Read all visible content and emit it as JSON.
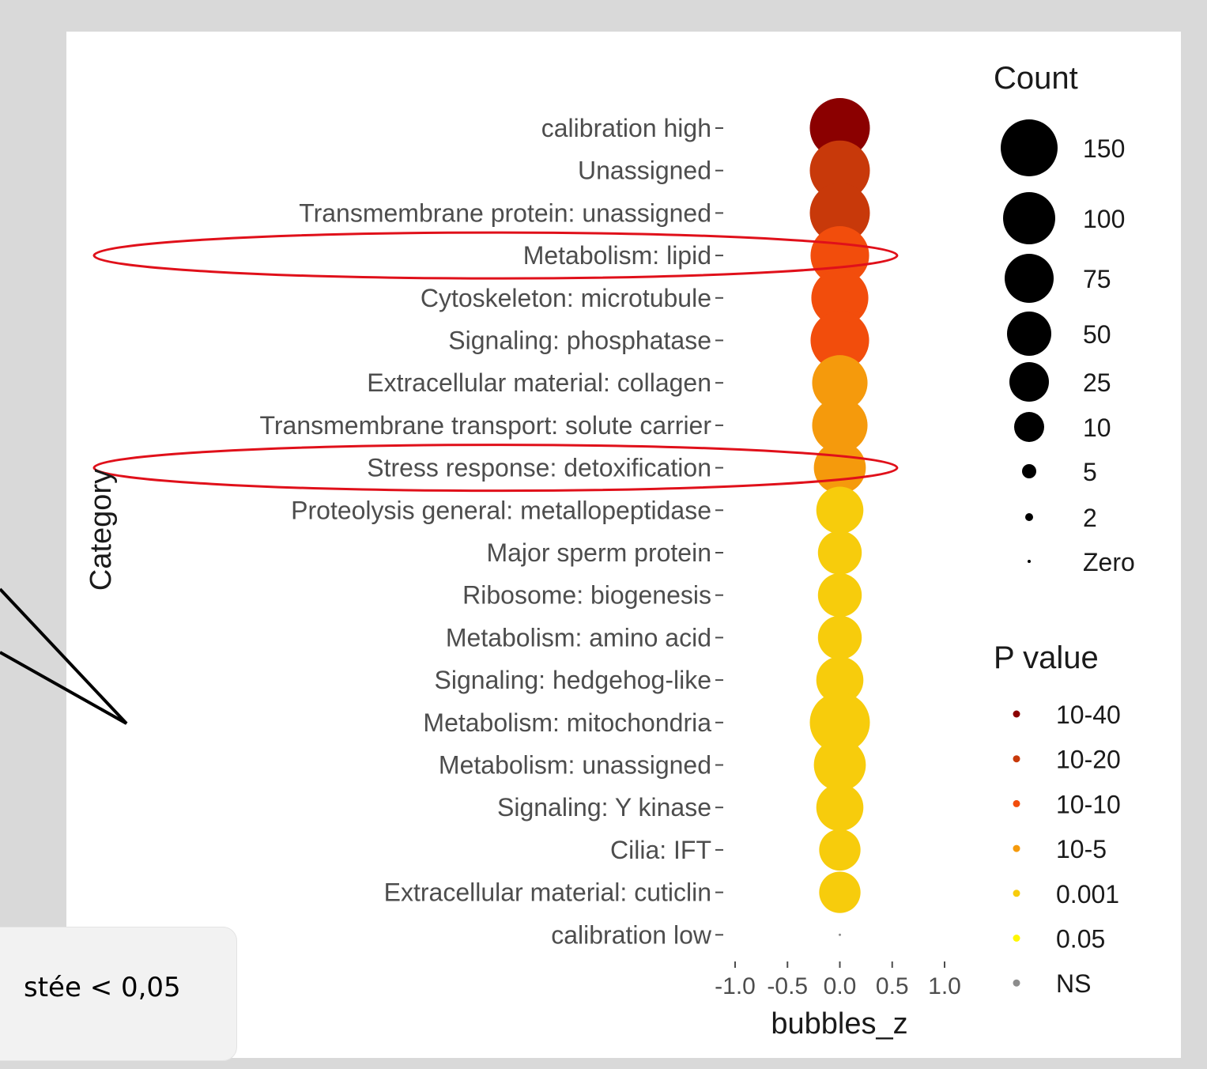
{
  "chart_data": {
    "type": "scatter",
    "xlabel": "bubbles_z",
    "ylabel": "Category",
    "xlim": [
      -1.0,
      1.0
    ],
    "x_ticks": [
      "-1.0",
      "-0.5",
      "0.0",
      "0.5",
      "1.0"
    ],
    "categories": [
      "calibration high",
      "Unassigned",
      "Transmembrane protein: unassigned",
      "Metabolism: lipid",
      "Cytoskeleton: microtubule",
      "Signaling: phosphatase",
      "Extracellular material: collagen",
      "Transmembrane transport: solute carrier",
      "Stress response: detoxification",
      "Proteolysis general: metallopeptidase",
      "Major sperm protein",
      "Ribosome: biogenesis",
      "Metabolism: amino acid",
      "Signaling: hedgehog-like",
      "Metabolism: mitochondria",
      "Metabolism: unassigned",
      "Signaling: Y kinase",
      "Cilia: IFT",
      "Extracellular material: cuticlin",
      "calibration low"
    ],
    "points": [
      {
        "category": "calibration high",
        "x": 0.0,
        "count": 150,
        "p_level": "10-40"
      },
      {
        "category": "Unassigned",
        "x": 0.0,
        "count": 150,
        "p_level": "10-20"
      },
      {
        "category": "Transmembrane protein: unassigned",
        "x": 0.0,
        "count": 150,
        "p_level": "10-20"
      },
      {
        "category": "Metabolism: lipid",
        "x": 0.0,
        "count": 140,
        "p_level": "10-10"
      },
      {
        "category": "Cytoskeleton: microtubule",
        "x": 0.0,
        "count": 130,
        "p_level": "10-10"
      },
      {
        "category": "Signaling: phosphatase",
        "x": 0.0,
        "count": 140,
        "p_level": "10-10"
      },
      {
        "category": "Extracellular material: collagen",
        "x": 0.0,
        "count": 120,
        "p_level": "10-5"
      },
      {
        "category": "Transmembrane transport: solute carrier",
        "x": 0.0,
        "count": 120,
        "p_level": "10-5"
      },
      {
        "category": "Stress response: detoxification",
        "x": 0.0,
        "count": 100,
        "p_level": "10-5"
      },
      {
        "category": "Proteolysis general: metallopeptidase",
        "x": 0.0,
        "count": 75,
        "p_level": "0.001"
      },
      {
        "category": "Major sperm protein",
        "x": 0.0,
        "count": 60,
        "p_level": "0.001"
      },
      {
        "category": "Ribosome: biogenesis",
        "x": 0.0,
        "count": 60,
        "p_level": "0.001"
      },
      {
        "category": "Metabolism: amino acid",
        "x": 0.0,
        "count": 60,
        "p_level": "0.001"
      },
      {
        "category": "Signaling: hedgehog-like",
        "x": 0.0,
        "count": 75,
        "p_level": "0.001"
      },
      {
        "category": "Metabolism: mitochondria",
        "x": 0.0,
        "count": 150,
        "p_level": "0.001"
      },
      {
        "category": "Metabolism: unassigned",
        "x": 0.0,
        "count": 100,
        "p_level": "0.001"
      },
      {
        "category": "Signaling: Y kinase",
        "x": 0.0,
        "count": 75,
        "p_level": "0.001"
      },
      {
        "category": "Cilia: IFT",
        "x": 0.0,
        "count": 50,
        "p_level": "0.001"
      },
      {
        "category": "Extracellular material: cuticlin",
        "x": 0.0,
        "count": 50,
        "p_level": "0.001"
      },
      {
        "category": "calibration low",
        "x": 0.0,
        "count": 0,
        "p_level": "NS"
      }
    ],
    "legend_count": {
      "title": "Count",
      "entries": [
        {
          "label": "150",
          "value": 150
        },
        {
          "label": "100",
          "value": 100
        },
        {
          "label": "75",
          "value": 75
        },
        {
          "label": "50",
          "value": 50
        },
        {
          "label": "25",
          "value": 25
        },
        {
          "label": "10",
          "value": 10
        },
        {
          "label": "5",
          "value": 5
        },
        {
          "label": "2",
          "value": 2
        },
        {
          "label": "Zero",
          "value": 0
        }
      ]
    },
    "legend_p": {
      "title": "P value",
      "entries": [
        {
          "label": "10-40",
          "color": "#8b0000"
        },
        {
          "label": "10-20",
          "color": "#c8390a"
        },
        {
          "label": "10-10",
          "color": "#f24d0c"
        },
        {
          "label": "10-5",
          "color": "#f59a0c"
        },
        {
          "label": "0.001",
          "color": "#f7cc0c"
        },
        {
          "label": "0.05",
          "color": "#fff700"
        },
        {
          "label": "NS",
          "color": "#8c8c8c"
        }
      ]
    },
    "highlighted_categories": [
      "Metabolism: lipid",
      "Stress response: detoxification"
    ],
    "highlight_color": "#e0101a",
    "legend_position": "right",
    "grid": false
  },
  "callout": {
    "text": "stée < 0,05"
  }
}
